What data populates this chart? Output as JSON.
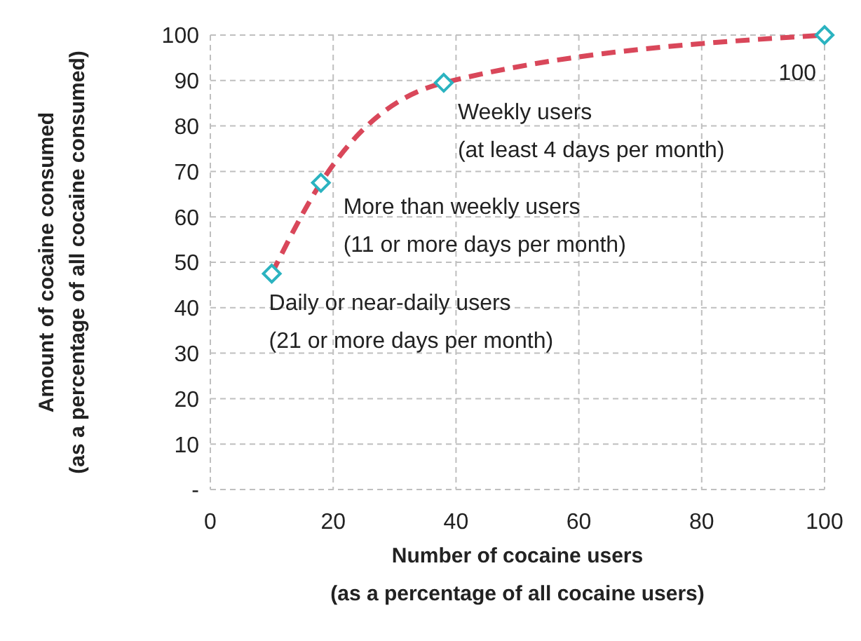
{
  "chart_data": {
    "type": "line",
    "xlabel": "Number of cocaine users\n(as a percentage of all cocaine users)",
    "ylabel": "Amount of cocaine consumed\n(as a percentage of all cocaine consumed)",
    "x": [
      10,
      18,
      38,
      100
    ],
    "series": [
      {
        "color": "#d9475a",
        "values": [
          47.5,
          67.5,
          89.5,
          100
        ],
        "value_labels": [
          null,
          null,
          null,
          "100"
        ]
      }
    ],
    "marker": "diamond",
    "line_style": "dashed",
    "grid": true,
    "xlim": [
      0,
      100
    ],
    "xticks": [
      0,
      20,
      40,
      60,
      80,
      100
    ],
    "ylim": [
      0,
      100
    ],
    "yticks": [
      {
        "value": 0,
        "label": "-"
      },
      10,
      20,
      30,
      40,
      50,
      60,
      70,
      80,
      90,
      100
    ],
    "annotations": [
      {
        "text": "Daily or near-daily users\n(21 or more days per month)",
        "x": 10,
        "y": 47.5
      },
      {
        "text": "More than weekly users\n(11 or more days per month)",
        "x": 18,
        "y": 67.5
      },
      {
        "text": "Weekly users\n(at least 4 days per month)",
        "x": 38,
        "y": 89.5
      }
    ]
  }
}
